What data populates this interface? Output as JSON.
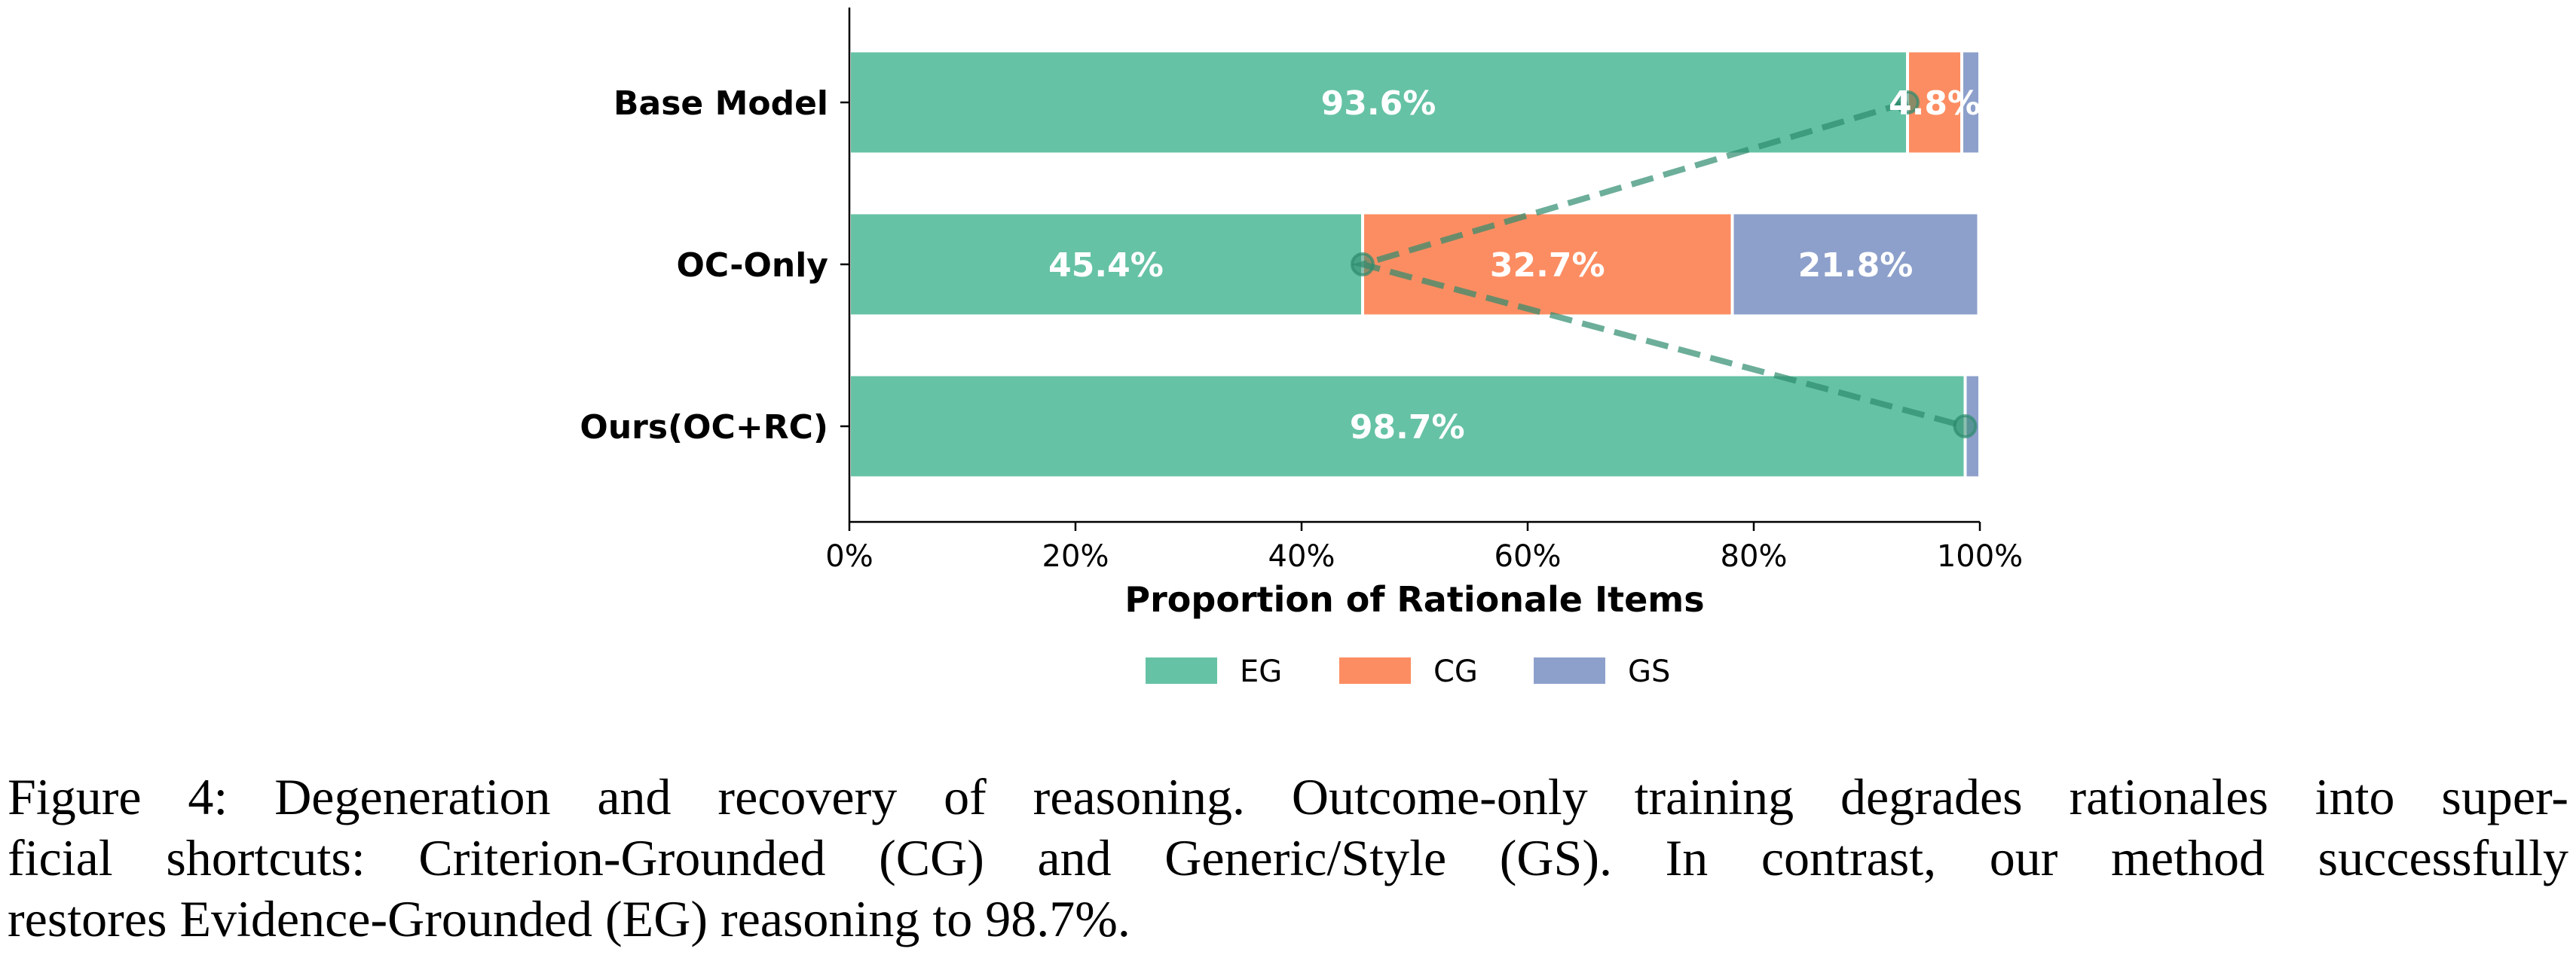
{
  "chart_data": {
    "type": "bar",
    "orientation": "horizontal-stacked",
    "categories": [
      "Base Model",
      "OC-Only",
      "Ours(OC+RC)"
    ],
    "series": [
      {
        "name": "EG",
        "color": "#66c2a5",
        "values": [
          93.6,
          45.4,
          98.7
        ],
        "labels": [
          "93.6%",
          "45.4%",
          "98.7%"
        ]
      },
      {
        "name": "CG",
        "color": "#fc8d62",
        "values": [
          4.8,
          32.7,
          0.0
        ],
        "labels": [
          "4.8%",
          "32.7%",
          ""
        ]
      },
      {
        "name": "GS",
        "color": "#8da0cb",
        "values": [
          1.6,
          21.8,
          1.3
        ],
        "labels": [
          "",
          "21.8%",
          ""
        ]
      }
    ],
    "trend_line": {
      "series": "EG",
      "style": "dashed",
      "color": "#2e8b6e",
      "markers": "circle"
    },
    "xlabel": "Proportion of Rationale Items",
    "ylabel": "",
    "xlim": [
      0,
      100
    ],
    "xticks": [
      "0%",
      "20%",
      "40%",
      "60%",
      "80%",
      "100%"
    ],
    "legend": {
      "placement": "bottom-center",
      "entries": [
        "EG",
        "CG",
        "GS"
      ]
    },
    "grid": false
  },
  "caption": {
    "lines": [
      "Figure 4: Degeneration and recovery of reasoning. Outcome-only training degrades rationales into super-",
      "ficial shortcuts: Criterion-Grounded (CG) and Generic/Style (GS). In contrast, our method successfully",
      "restores Evidence-Grounded (EG) reasoning to 98.7%."
    ]
  }
}
